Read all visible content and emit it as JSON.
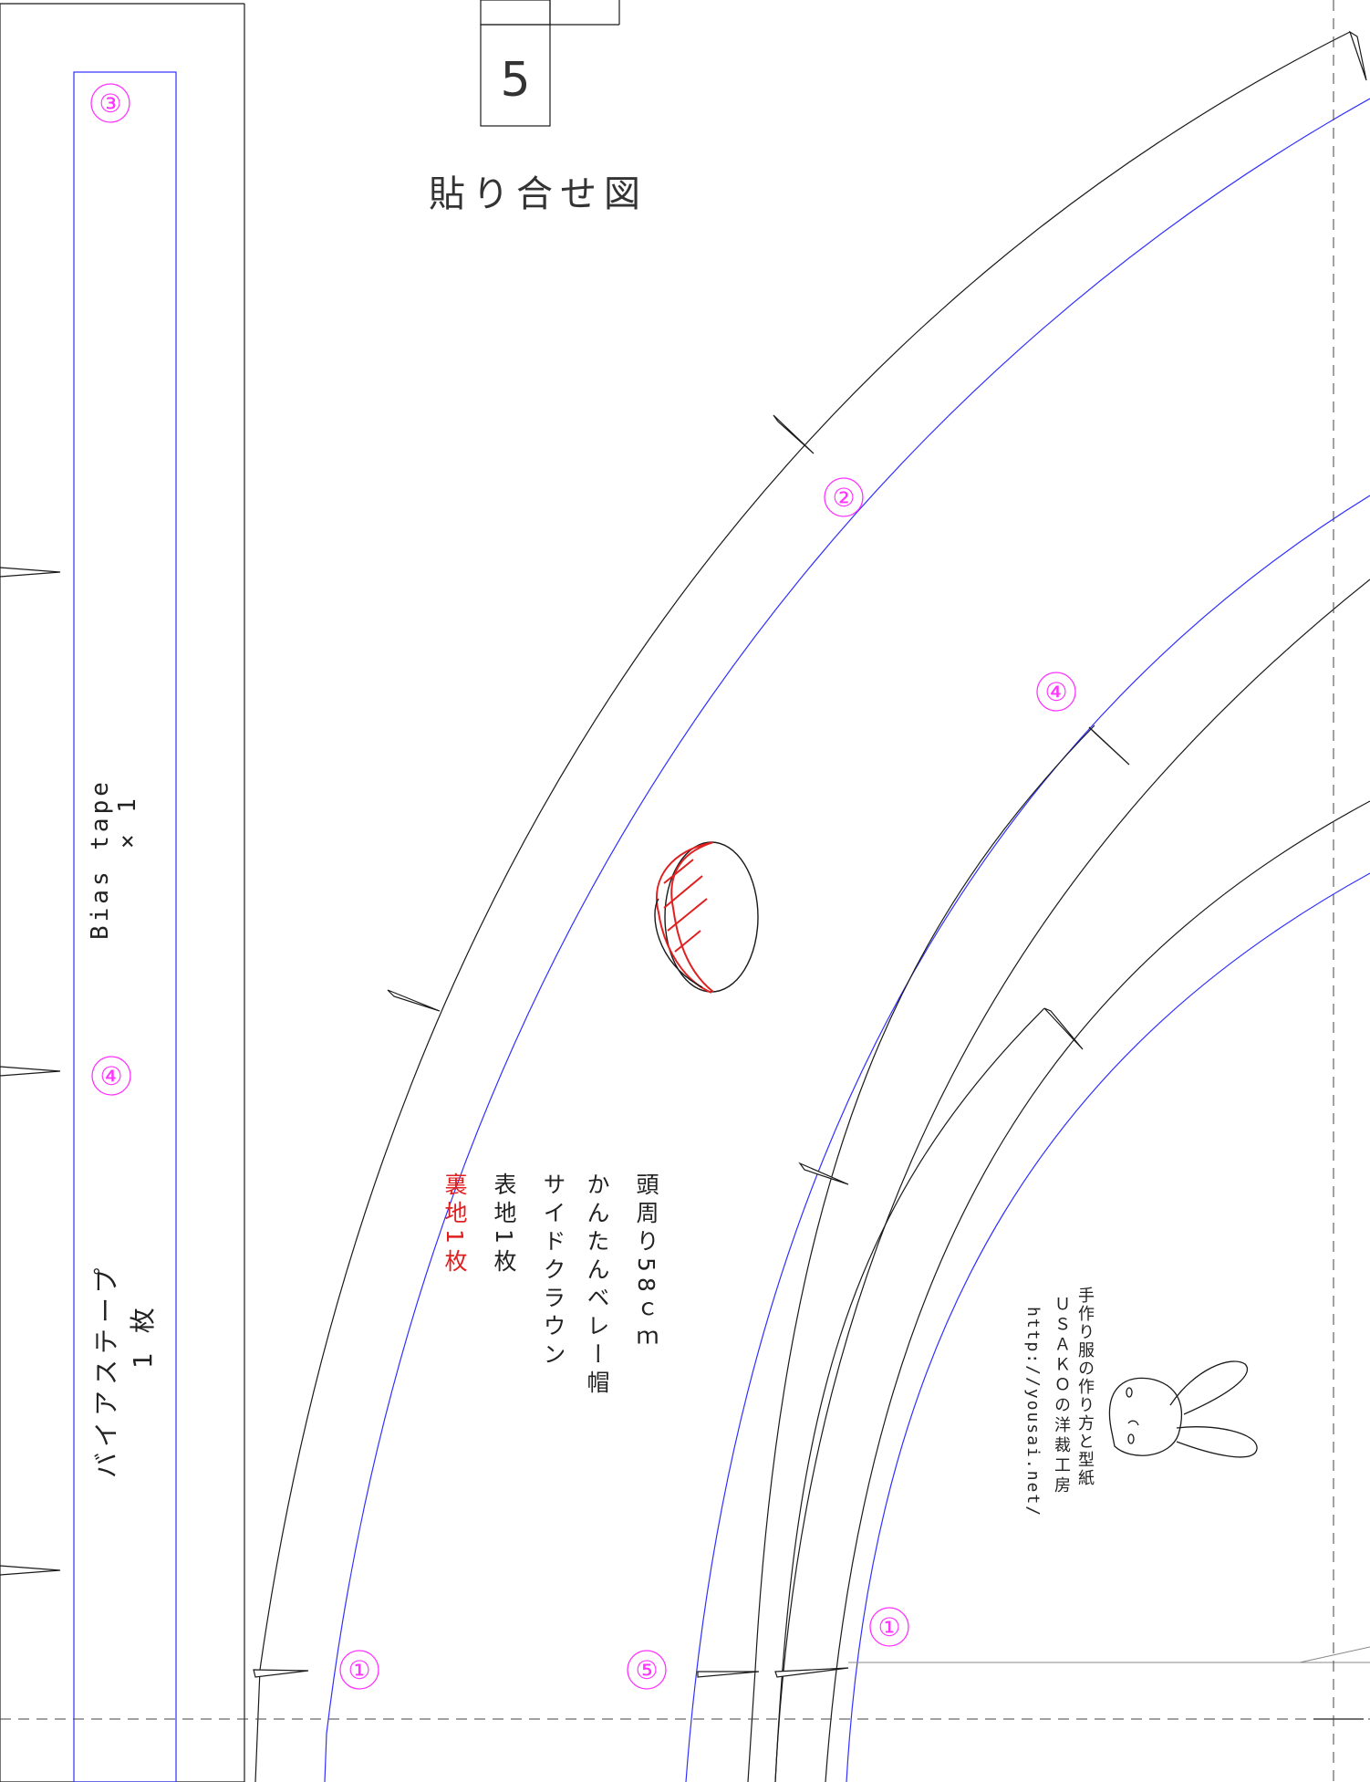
{
  "sheet": {
    "page_number": "5",
    "assembly_label": "貼り合せ図"
  },
  "markers": {
    "circle_3": "③",
    "circle_4": "④",
    "circle_2": "②",
    "circle_1": "①",
    "circle_5": "⑤"
  },
  "bias_tape": {
    "label_en": "Bias tape",
    "count_en": "× 1",
    "label_jp": "バイアステープ",
    "count_jp": "1 枚"
  },
  "pattern_info": {
    "head_size": "頭周り58ｃｍ",
    "product_name": "かんたんベレー帽",
    "piece_name": "サイドクラウン",
    "outer_fabric": "表地1枚",
    "lining_fabric": "裏地1枚"
  },
  "credit": {
    "line1": "手作り服の作り方と型紙",
    "line2": "ＵＳＡＫＯの洋裁工房",
    "line3": "http://yousai.net/"
  },
  "colors": {
    "outline": "#1a1a1a",
    "seam_line": "#3030ff",
    "marker": "#ff33ff",
    "accent_red": "#e02020",
    "dashed": "#444444"
  }
}
